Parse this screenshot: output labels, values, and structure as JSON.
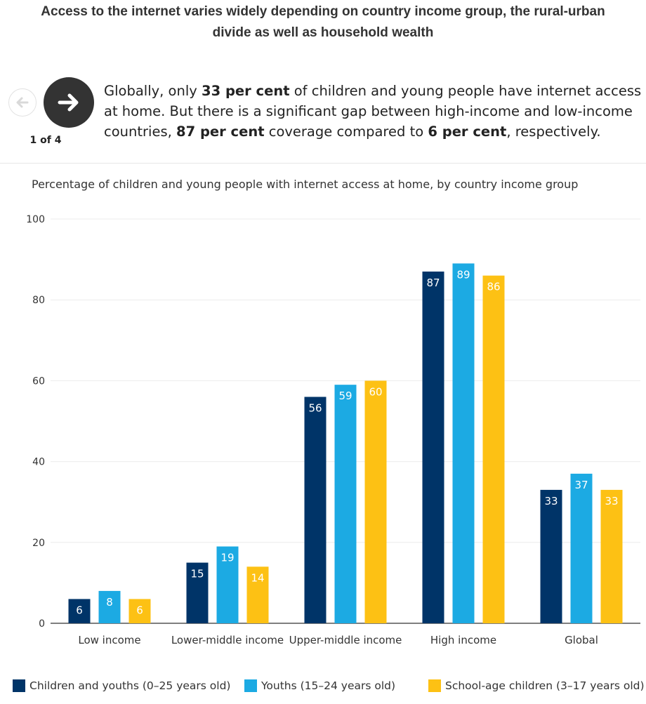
{
  "headline": {
    "line1": "Access to the internet varies widely depending on country income group, the rural-urban",
    "line2": "divide as well as household wealth"
  },
  "navigation": {
    "prev_icon": "arrow-left-icon",
    "next_icon": "arrow-right-icon",
    "pager_text": "1 of 4"
  },
  "step": {
    "parts": [
      {
        "text": "Globally, only ",
        "bold": false
      },
      {
        "text": "33 per cent",
        "bold": true
      },
      {
        "text": " of children and young people have internet access at home. But there is a significant gap between high-income and low-income countries, ",
        "bold": false
      },
      {
        "text": "87 per cent",
        "bold": true
      },
      {
        "text": " coverage compared to ",
        "bold": false
      },
      {
        "text": "6 per cent",
        "bold": true
      },
      {
        "text": ", respectively.",
        "bold": false
      }
    ]
  },
  "chart_data": {
    "type": "bar",
    "title": "Percentage of children and young people with internet access at home, by country income group",
    "categories": [
      "Low income",
      "Lower-middle income",
      "Upper-middle income",
      "High income",
      "Global"
    ],
    "series": [
      {
        "name": "Children and youths (0–25 years old)",
        "color": "#003468",
        "label_color": "#ffffff",
        "values": [
          6,
          15,
          56,
          87,
          33
        ]
      },
      {
        "name": "Youths (15–24 years old)",
        "color": "#1caae3",
        "label_color": "#ffffff",
        "values": [
          8,
          19,
          59,
          89,
          37
        ]
      },
      {
        "name": "School-age children (3–17 years old)",
        "color": "#fdc114",
        "label_color": "#ffffff",
        "values": [
          6,
          14,
          60,
          86,
          33
        ]
      }
    ],
    "yticks": [
      0,
      20,
      40,
      60,
      80,
      100
    ],
    "ylim": [
      0,
      100
    ],
    "xlabel": "",
    "ylabel": "",
    "legend_position": "bottom"
  }
}
